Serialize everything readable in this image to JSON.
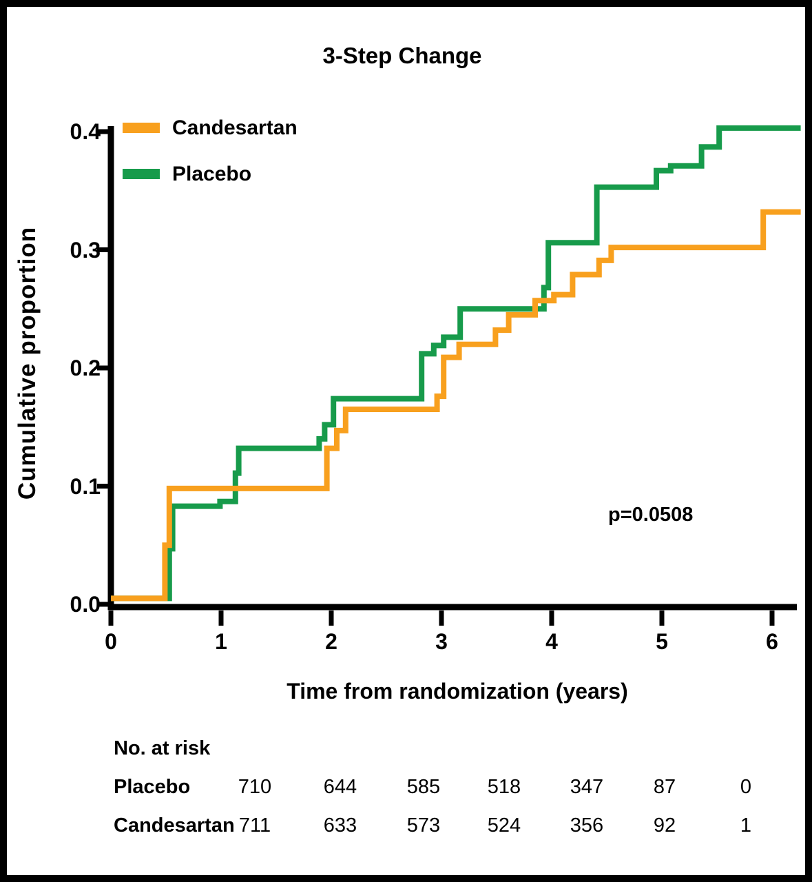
{
  "figure": {
    "title": "3-Step Change",
    "annotation": "p=0.0508"
  },
  "chart_data": {
    "type": "line",
    "subtype": "kaplan-meier-step-cumulative-incidence",
    "title": "3-Step Change",
    "xlabel": "Time from randomization (years)",
    "ylabel": "Cumulative proportion",
    "xlim": [
      0,
      6.26
    ],
    "ylim": [
      0,
      0.4
    ],
    "grid": false,
    "legend_position": "top-left",
    "annotation": "p=0.0508",
    "x_tick_values": [
      0,
      1,
      2,
      3,
      4,
      5,
      6
    ],
    "x_tick_labels": [
      "0",
      "1",
      "2",
      "3",
      "4",
      "5",
      "6"
    ],
    "y_tick_values": [
      0,
      0.1,
      0.2,
      0.3,
      0.4
    ],
    "y_tick_labels": [
      "0.0",
      "0.1",
      "0.2",
      "0.3",
      "0.4"
    ],
    "series": [
      {
        "name": "Candesartan",
        "color": "#F8A01E",
        "end_x": 6.26,
        "steps": [
          [
            0,
            0.005
          ],
          [
            0.49,
            0.05
          ],
          [
            0.53,
            0.098
          ],
          [
            1.96,
            0.132
          ],
          [
            2.05,
            0.147
          ],
          [
            2.13,
            0.165
          ],
          [
            2.96,
            0.176
          ],
          [
            3.02,
            0.209
          ],
          [
            3.16,
            0.22
          ],
          [
            3.49,
            0.232
          ],
          [
            3.61,
            0.245
          ],
          [
            3.85,
            0.257
          ],
          [
            4.02,
            0.262
          ],
          [
            4.19,
            0.279
          ],
          [
            4.43,
            0.291
          ],
          [
            4.54,
            0.302
          ],
          [
            5.92,
            0.332
          ]
        ]
      },
      {
        "name": "Placebo",
        "color": "#179B4B",
        "end_x": 6.26,
        "steps": [
          [
            0,
            0.005
          ],
          [
            0.53,
            0.047
          ],
          [
            0.56,
            0.083
          ],
          [
            0.99,
            0.087
          ],
          [
            1.13,
            0.111
          ],
          [
            1.16,
            0.132
          ],
          [
            1.89,
            0.14
          ],
          [
            1.94,
            0.152
          ],
          [
            2.02,
            0.174
          ],
          [
            2.82,
            0.212
          ],
          [
            2.93,
            0.219
          ],
          [
            3.02,
            0.226
          ],
          [
            3.17,
            0.25
          ],
          [
            3.93,
            0.268
          ],
          [
            3.97,
            0.306
          ],
          [
            4.41,
            0.353
          ],
          [
            4.95,
            0.367
          ],
          [
            5.08,
            0.371
          ],
          [
            5.36,
            0.387
          ],
          [
            5.52,
            0.403
          ]
        ]
      }
    ],
    "risk_table": {
      "header": "No. at risk",
      "rows": [
        {
          "label": "Placebo",
          "values": [
            "710",
            "644",
            "585",
            "518",
            "347",
            "87",
            "0"
          ]
        },
        {
          "label": "Candesartan",
          "values": [
            "711",
            "633",
            "573",
            "524",
            "356",
            "92",
            "1"
          ]
        }
      ]
    }
  }
}
